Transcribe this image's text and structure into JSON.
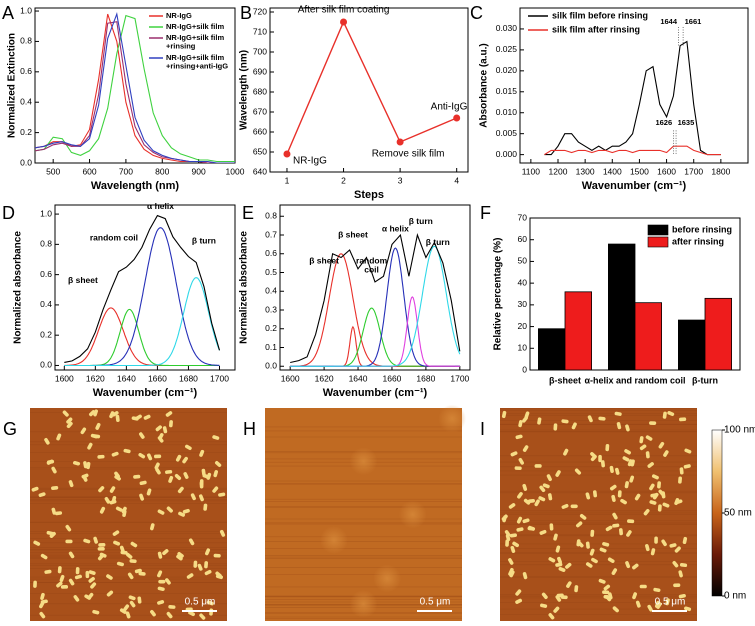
{
  "chart_data": [
    {
      "type": "line",
      "panel_label": "A",
      "xlabel": "Wavelength (nm)",
      "ylabel": "Normalized Extinction",
      "x": [
        450,
        475,
        500,
        525,
        550,
        575,
        600,
        625,
        650,
        675,
        700,
        725,
        750,
        775,
        800,
        825,
        850,
        875,
        900,
        925,
        950,
        975,
        1000
      ],
      "xlim": [
        450,
        1000
      ],
      "xticks": [
        500,
        600,
        700,
        800,
        900,
        1000
      ],
      "ylim": [
        0,
        1.02
      ],
      "yticks": [
        {
          "value": 0,
          "label": "0.0"
        },
        0.2,
        0.4,
        0.6,
        0.8,
        {
          "value": 1,
          "label": "1.0"
        }
      ],
      "legend": "upper right",
      "series": [
        {
          "name": "NR-IgG",
          "color": "#e8302a",
          "values": [
            0.1,
            0.11,
            0.14,
            0.14,
            0.11,
            0.12,
            0.22,
            0.55,
            0.98,
            0.8,
            0.4,
            0.18,
            0.09,
            0.05,
            0.03,
            0.02,
            0.01,
            0.01,
            0.01,
            0,
            0,
            0,
            0
          ]
        },
        {
          "name": "NR-IgG+silk film",
          "color": "#3fd23f",
          "values": [
            0.08,
            0.09,
            0.17,
            0.16,
            0.07,
            0.05,
            0.08,
            0.16,
            0.36,
            0.72,
            0.97,
            0.95,
            0.62,
            0.33,
            0.18,
            0.1,
            0.06,
            0.04,
            0.02,
            0.02,
            0.01,
            0.01,
            0.01
          ]
        },
        {
          "name": "NR-IgG+silk film\n+rinsing",
          "color": "#9b2f6e",
          "values": [
            0.08,
            0.09,
            0.12,
            0.13,
            0.11,
            0.11,
            0.18,
            0.45,
            0.92,
            0.93,
            0.52,
            0.24,
            0.12,
            0.07,
            0.04,
            0.03,
            0.02,
            0.01,
            0.01,
            0,
            0,
            0,
            0
          ]
        },
        {
          "name": "NR-IgG+silk film\n+rinsing+anti-IgG",
          "color": "#3040c0",
          "values": [
            0.1,
            0.11,
            0.13,
            0.14,
            0.12,
            0.11,
            0.16,
            0.38,
            0.82,
            0.98,
            0.64,
            0.3,
            0.15,
            0.08,
            0.05,
            0.03,
            0.02,
            0.01,
            0.01,
            0.01,
            0,
            0,
            0
          ]
        }
      ]
    },
    {
      "type": "line",
      "panel_label": "B",
      "xlabel": "Steps",
      "ylabel": "Wavelength (nm)",
      "x": [
        1,
        2,
        3,
        4
      ],
      "xlim": [
        0.7,
        4.2
      ],
      "xticks": [
        1,
        2,
        3,
        4
      ],
      "ylim": [
        640,
        722
      ],
      "yticks": [
        640,
        650,
        660,
        670,
        680,
        690,
        700,
        710,
        720
      ],
      "markers": true,
      "series": [
        {
          "color": "#e8302a",
          "values": [
            649,
            715,
            655,
            667
          ]
        }
      ],
      "point_labels": [
        "NR-IgG",
        "After silk film coating",
        "Remove silk film",
        "Anti-IgG"
      ]
    },
    {
      "type": "line",
      "panel_label": "C",
      "xlabel": "Wavenumber (cm⁻¹)",
      "ylabel": "Absorbance (a.u.)",
      "x": [
        1150,
        1175,
        1200,
        1225,
        1250,
        1275,
        1300,
        1325,
        1350,
        1375,
        1400,
        1425,
        1450,
        1475,
        1500,
        1525,
        1550,
        1575,
        1600,
        1625,
        1650,
        1675,
        1700,
        1725,
        1750,
        1775,
        1800
      ],
      "xlim": [
        1060,
        1900
      ],
      "xticks": [
        1100,
        1200,
        1300,
        1400,
        1500,
        1600,
        1700,
        1800
      ],
      "ylim": [
        -0.002,
        0.035
      ],
      "yticks": [
        {
          "value": 0,
          "label": "0.000"
        },
        0.005,
        {
          "value": 0.01,
          "label": "0.010"
        },
        0.015,
        {
          "value": 0.02,
          "label": "0.020"
        },
        0.025,
        {
          "value": 0.03,
          "label": "0.030"
        }
      ],
      "legend": "upper left",
      "series": [
        {
          "name": "silk film before rinsing",
          "color": "#000000",
          "values": [
            0,
            0,
            0.002,
            0.005,
            0.005,
            0.003,
            0.002,
            0.001,
            0.002,
            0.001,
            0.002,
            0.002,
            0.003,
            0.005,
            0.012,
            0.02,
            0.021,
            0.012,
            0.009,
            0.014,
            0.026,
            0.027,
            0.012,
            0.001,
            0,
            0,
            0
          ]
        },
        {
          "name": "silk film after rinsing",
          "color": "#e8302a",
          "values": [
            0,
            0.001,
            0.001,
            0.001,
            0.0005,
            0.001,
            0.001,
            0.0005,
            0.001,
            0.001,
            0.0005,
            0.001,
            0.001,
            0.0005,
            0.001,
            0.001,
            0.001,
            0.001,
            0.0005,
            0.002,
            0.002,
            0.002,
            0.001,
            0.0005,
            0,
            0,
            0
          ]
        }
      ],
      "peak_labels_before": [
        1644,
        1661
      ],
      "peak_labels_after": [
        1626,
        1635
      ]
    },
    {
      "type": "line",
      "panel_label": "D",
      "xlabel": "Wavenumber (cm⁻¹)",
      "ylabel": "Normalized absorbance",
      "x": [
        1600,
        1605,
        1610,
        1615,
        1620,
        1625,
        1630,
        1635,
        1640,
        1645,
        1650,
        1655,
        1660,
        1665,
        1670,
        1675,
        1680,
        1685,
        1690,
        1695,
        1700
      ],
      "xlim": [
        1594,
        1710
      ],
      "xticks": [
        1600,
        1620,
        1640,
        1660,
        1680,
        1700
      ],
      "ylim": [
        -0.03,
        1.06
      ],
      "yticks": [
        {
          "value": 0,
          "label": "0.0"
        },
        0.2,
        0.4,
        0.6,
        0.8,
        {
          "value": 1,
          "label": "1.0"
        }
      ],
      "series": [
        {
          "color": "#000000",
          "values": [
            0.02,
            0.03,
            0.06,
            0.11,
            0.22,
            0.37,
            0.5,
            0.62,
            0.65,
            0.7,
            0.78,
            0.9,
            0.99,
            0.97,
            0.85,
            0.78,
            0.72,
            0.68,
            0.52,
            0.28,
            0.1
          ]
        }
      ],
      "components": [
        {
          "center": 1630,
          "height": 0.38,
          "width": 8,
          "color": "#e8302a"
        },
        {
          "center": 1642,
          "height": 0.37,
          "width": 6,
          "color": "#2ecc2e"
        },
        {
          "center": 1662,
          "height": 0.91,
          "width": 10,
          "color": "#2630b8"
        },
        {
          "center": 1685,
          "height": 0.58,
          "width": 8,
          "color": "#2fd8e8"
        }
      ],
      "annotations": [
        "β sheet",
        "random coil",
        "α helix",
        "β turn"
      ]
    },
    {
      "type": "line",
      "panel_label": "E",
      "xlabel": "Wavenumber (cm⁻¹)",
      "ylabel": "Normalized absorbance",
      "x": [
        1600,
        1605,
        1610,
        1615,
        1620,
        1625,
        1630,
        1635,
        1640,
        1645,
        1650,
        1655,
        1660,
        1665,
        1670,
        1675,
        1680,
        1685,
        1690,
        1695,
        1700
      ],
      "xlim": [
        1594,
        1706
      ],
      "xticks": [
        1600,
        1620,
        1640,
        1660,
        1680,
        1700
      ],
      "ylim": [
        -0.02,
        0.86
      ],
      "yticks": [
        {
          "value": 0,
          "label": "0.0"
        },
        0.1,
        0.2,
        0.3,
        0.4,
        0.5,
        0.6,
        0.7,
        0.8
      ],
      "series": [
        {
          "color": "#000000",
          "values": [
            0.02,
            0.03,
            0.05,
            0.17,
            0.35,
            0.6,
            0.58,
            0.62,
            0.52,
            0.58,
            0.45,
            0.48,
            0.65,
            0.7,
            0.48,
            0.7,
            0.58,
            0.66,
            0.55,
            0.35,
            0.08
          ]
        }
      ],
      "components": [
        {
          "center": 1630,
          "height": 0.6,
          "width": 7,
          "color": "#e8302a"
        },
        {
          "center": 1637,
          "height": 0.21,
          "width": 1.8,
          "color": "#e8302a"
        },
        {
          "center": 1648,
          "height": 0.31,
          "width": 5,
          "color": "#2ecc2e"
        },
        {
          "center": 1662,
          "height": 0.63,
          "width": 5,
          "color": "#2630b8"
        },
        {
          "center": 1672,
          "height": 0.37,
          "width": 3,
          "color": "#e040e0"
        },
        {
          "center": 1685,
          "height": 0.64,
          "width": 7,
          "color": "#2fd8e8"
        }
      ],
      "annotations": [
        "β sheet",
        "β sheet",
        "random\ncoil",
        "α helix",
        "β turn",
        "β turn"
      ]
    },
    {
      "type": "bar",
      "panel_label": "F",
      "ylabel": "Relative percentage (%)",
      "categories": [
        "β-sheet",
        "α-helix and random coil",
        "β-turn"
      ],
      "ylim": [
        0,
        70
      ],
      "yticks": [
        0,
        10,
        20,
        30,
        40,
        50,
        60,
        70
      ],
      "legend": "upper right",
      "series": [
        {
          "name": "before rinsing",
          "color": "#000000",
          "values": [
            19,
            58,
            23
          ]
        },
        {
          "name": "after rinsing",
          "color": "#ee1c1c",
          "values": [
            36,
            31,
            33
          ]
        }
      ]
    }
  ],
  "images": [
    {
      "label": "G",
      "scale_bar": "0.5 μm",
      "surface": "nanorods"
    },
    {
      "label": "H",
      "scale_bar": "0.5 μm",
      "surface": "film"
    },
    {
      "label": "I",
      "scale_bar": "0.5 μm",
      "surface": "nanorods"
    }
  ],
  "colorbar": {
    "lim": [
      0,
      100
    ],
    "ticks": [
      {
        "value": 100,
        "label": "100 nm"
      },
      {
        "value": 50,
        "label": "50 nm"
      },
      {
        "value": 0,
        "label": "0 nm"
      }
    ]
  }
}
